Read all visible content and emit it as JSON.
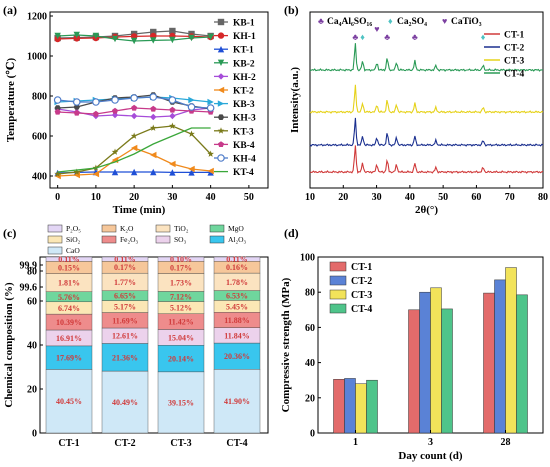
{
  "chart_data": [
    {
      "panel": "(a)",
      "type": "line",
      "xlabel": "Time (min)",
      "ylabel": "Temperature (℃)",
      "xlim": [
        -2,
        55
      ],
      "ylim": [
        340,
        1220
      ],
      "xticks": [
        "0",
        "10",
        "20",
        "30",
        "40",
        "50"
      ],
      "yticks": [
        "400",
        "600",
        "800",
        "1000",
        "1200"
      ],
      "legend_position": "right",
      "series": [
        {
          "name": "KB-1",
          "color": "#666666",
          "marker": "square",
          "x": [
            0,
            5,
            10,
            15,
            20,
            25,
            30,
            35,
            40
          ],
          "y": [
            1090,
            1092,
            1095,
            1100,
            1110,
            1120,
            1125,
            1110,
            1100
          ]
        },
        {
          "name": "KH-1",
          "color": "#d62728",
          "marker": "circle",
          "x": [
            0,
            5,
            10,
            15,
            20,
            25,
            30,
            35,
            40
          ],
          "y": [
            1085,
            1088,
            1090,
            1095,
            1098,
            1100,
            1100,
            1098,
            1095
          ]
        },
        {
          "name": "KT-1",
          "color": "#1f4fd6",
          "marker": "triangle",
          "x": [
            0,
            5,
            10,
            15,
            20,
            25,
            30,
            35,
            40
          ],
          "y": [
            415,
            418,
            420,
            420,
            420,
            420,
            418,
            418,
            418
          ]
        },
        {
          "name": "KB-2",
          "color": "#2a9a56",
          "marker": "triangle-down",
          "x": [
            0,
            5,
            10,
            15,
            20,
            25,
            30,
            35,
            40
          ],
          "y": [
            1100,
            1105,
            1100,
            1085,
            1075,
            1078,
            1080,
            1090,
            1095
          ]
        },
        {
          "name": "KH-2",
          "color": "#a64dd9",
          "marker": "diamond",
          "x": [
            0,
            5,
            10,
            15,
            20,
            25,
            30,
            35,
            40
          ],
          "y": [
            735,
            720,
            700,
            705,
            700,
            695,
            700,
            730,
            740
          ]
        },
        {
          "name": "KT-2",
          "color": "#f08a1c",
          "marker": "triangle-left",
          "x": [
            0,
            5,
            10,
            15,
            20,
            25,
            30,
            35,
            40
          ],
          "y": [
            400,
            405,
            410,
            480,
            540,
            505,
            460,
            435,
            425
          ]
        },
        {
          "name": "KB-3",
          "color": "#2aa8d9",
          "marker": "triangle-right",
          "x": [
            0,
            5,
            10,
            15,
            20,
            25,
            30,
            35,
            40
          ],
          "y": [
            770,
            775,
            780,
            785,
            790,
            795,
            790,
            780,
            770
          ]
        },
        {
          "name": "KH-3",
          "color": "#4a4a4a",
          "marker": "hexagon",
          "x": [
            0,
            5,
            10,
            15,
            20,
            25,
            30,
            35,
            40
          ],
          "y": [
            740,
            745,
            770,
            790,
            795,
            805,
            770,
            750,
            735
          ]
        },
        {
          "name": "KT-3",
          "color": "#7a7a1a",
          "marker": "star",
          "x": [
            0,
            5,
            10,
            15,
            20,
            25,
            30,
            35,
            40
          ],
          "y": [
            410,
            420,
            440,
            520,
            600,
            640,
            650,
            610,
            510
          ]
        },
        {
          "name": "KB-4",
          "color": "#c73a8a",
          "marker": "pentagon",
          "x": [
            0,
            5,
            10,
            15,
            20,
            25,
            30,
            35,
            40
          ],
          "y": [
            720,
            715,
            710,
            725,
            740,
            735,
            730,
            725,
            720
          ]
        },
        {
          "name": "KH-4",
          "color": "#4f7cc9",
          "marker": "circle-open",
          "x": [
            0,
            5,
            10,
            15,
            20,
            25,
            30,
            35,
            40
          ],
          "y": [
            780,
            770,
            770,
            780,
            790,
            795,
            780,
            745,
            740
          ]
        },
        {
          "name": "KT-4",
          "color": "#3aa73a",
          "marker": "none",
          "x": [
            0,
            5,
            10,
            15,
            20,
            25,
            30,
            35,
            40
          ],
          "y": [
            420,
            430,
            440,
            470,
            510,
            560,
            600,
            640,
            640
          ]
        }
      ]
    },
    {
      "panel": "(b)",
      "type": "line",
      "xlabel": "2θ(°)",
      "ylabel": "Intensity(a.u.)",
      "xlim": [
        10,
        80
      ],
      "xticks": [
        "10",
        "20",
        "30",
        "40",
        "50",
        "60",
        "70",
        "80"
      ],
      "phase_legend": [
        {
          "symbol": "♣",
          "label": "Ca₄Al₆SO₁₆",
          "color": "#7b3fa0"
        },
        {
          "symbol": "♦",
          "label": "Ca₂SO₄",
          "color": "#4fc3c3"
        },
        {
          "symbol": "♥",
          "label": "CaTiO₃",
          "color": "#7b3fa0"
        }
      ],
      "peaks_two_theta": [
        23.6,
        25.8,
        30.1,
        33.2,
        36.0,
        41.5,
        47.8,
        62.0
      ],
      "series": [
        {
          "name": "CT-1",
          "color": "#d03a3a",
          "offset": 0
        },
        {
          "name": "CT-2",
          "color": "#1a2f8f",
          "offset": 1
        },
        {
          "name": "CT-3",
          "color": "#e6d21a",
          "offset": 2
        },
        {
          "name": "CT-4",
          "color": "#2a9a56",
          "offset": 3
        }
      ]
    },
    {
      "panel": "(c)",
      "type": "bar",
      "stacked": true,
      "ylabel": "Chemical composition (%)",
      "categories": [
        "CT-1",
        "CT-2",
        "CT-3",
        "CT-4"
      ],
      "yticks": [
        "0",
        "20",
        "40",
        "60",
        "80",
        "99.6",
        "99.9"
      ],
      "components": [
        {
          "name": "CaO",
          "color": "#cfe8f7",
          "values": [
            "40.45%",
            "40.49%",
            "39.15%",
            "41.90%"
          ]
        },
        {
          "name": "Al₂O₃",
          "color": "#39c6ee",
          "values": [
            "17.69%",
            "21.36%",
            "20.14%",
            "20.36%"
          ]
        },
        {
          "name": "SO₃",
          "color": "#ecd2ec",
          "values": [
            "16.91%",
            "12.61%",
            "15.04%",
            "11.84%"
          ]
        },
        {
          "name": "Fe₂O₃",
          "color": "#ee8c8c",
          "values": [
            "10.39%",
            "11.69%",
            "11.42%",
            "11.88%"
          ]
        },
        {
          "name": "SiO₂",
          "color": "#fbe7b5",
          "values": [
            "6.74%",
            "5.17%",
            "5.12%",
            "5.45%"
          ]
        },
        {
          "name": "MgO",
          "color": "#6fd69d",
          "values": [
            "5.76%",
            "6.65%",
            "7.12%",
            "6.53%"
          ]
        },
        {
          "name": "TiO₂",
          "color": "#fbe3c0",
          "values": [
            "1.81%",
            "1.77%",
            "1.73%",
            "1.78%"
          ]
        },
        {
          "name": "K₂O",
          "color": "#f6c79a",
          "values": [
            "0.15%",
            "0.17%",
            "0.17%",
            "0.16%"
          ]
        },
        {
          "name": "P₂O₅",
          "color": "#e3d6f5",
          "values": [
            "0.11%",
            "0.11%",
            "0.10%",
            "0.11%"
          ]
        }
      ]
    },
    {
      "panel": "(d)",
      "type": "bar",
      "xlabel": "Day count (d)",
      "ylabel": "Compressive strength (MPa)",
      "categories": [
        "1",
        "3",
        "28"
      ],
      "ylim": [
        0,
        100
      ],
      "yticks": [
        "0",
        "20",
        "40",
        "60",
        "80",
        "100"
      ],
      "legend_position": "top-left",
      "series": [
        {
          "name": "CT-1",
          "color": "#e36b6b",
          "values": [
            30.5,
            70,
            79.5
          ]
        },
        {
          "name": "CT-2",
          "color": "#5a82d6",
          "values": [
            31,
            80,
            87
          ]
        },
        {
          "name": "CT-3",
          "color": "#f2e35a",
          "values": [
            28,
            82.5,
            94
          ]
        },
        {
          "name": "CT-4",
          "color": "#4ec48a",
          "values": [
            30,
            70.5,
            78.5
          ]
        }
      ]
    }
  ]
}
